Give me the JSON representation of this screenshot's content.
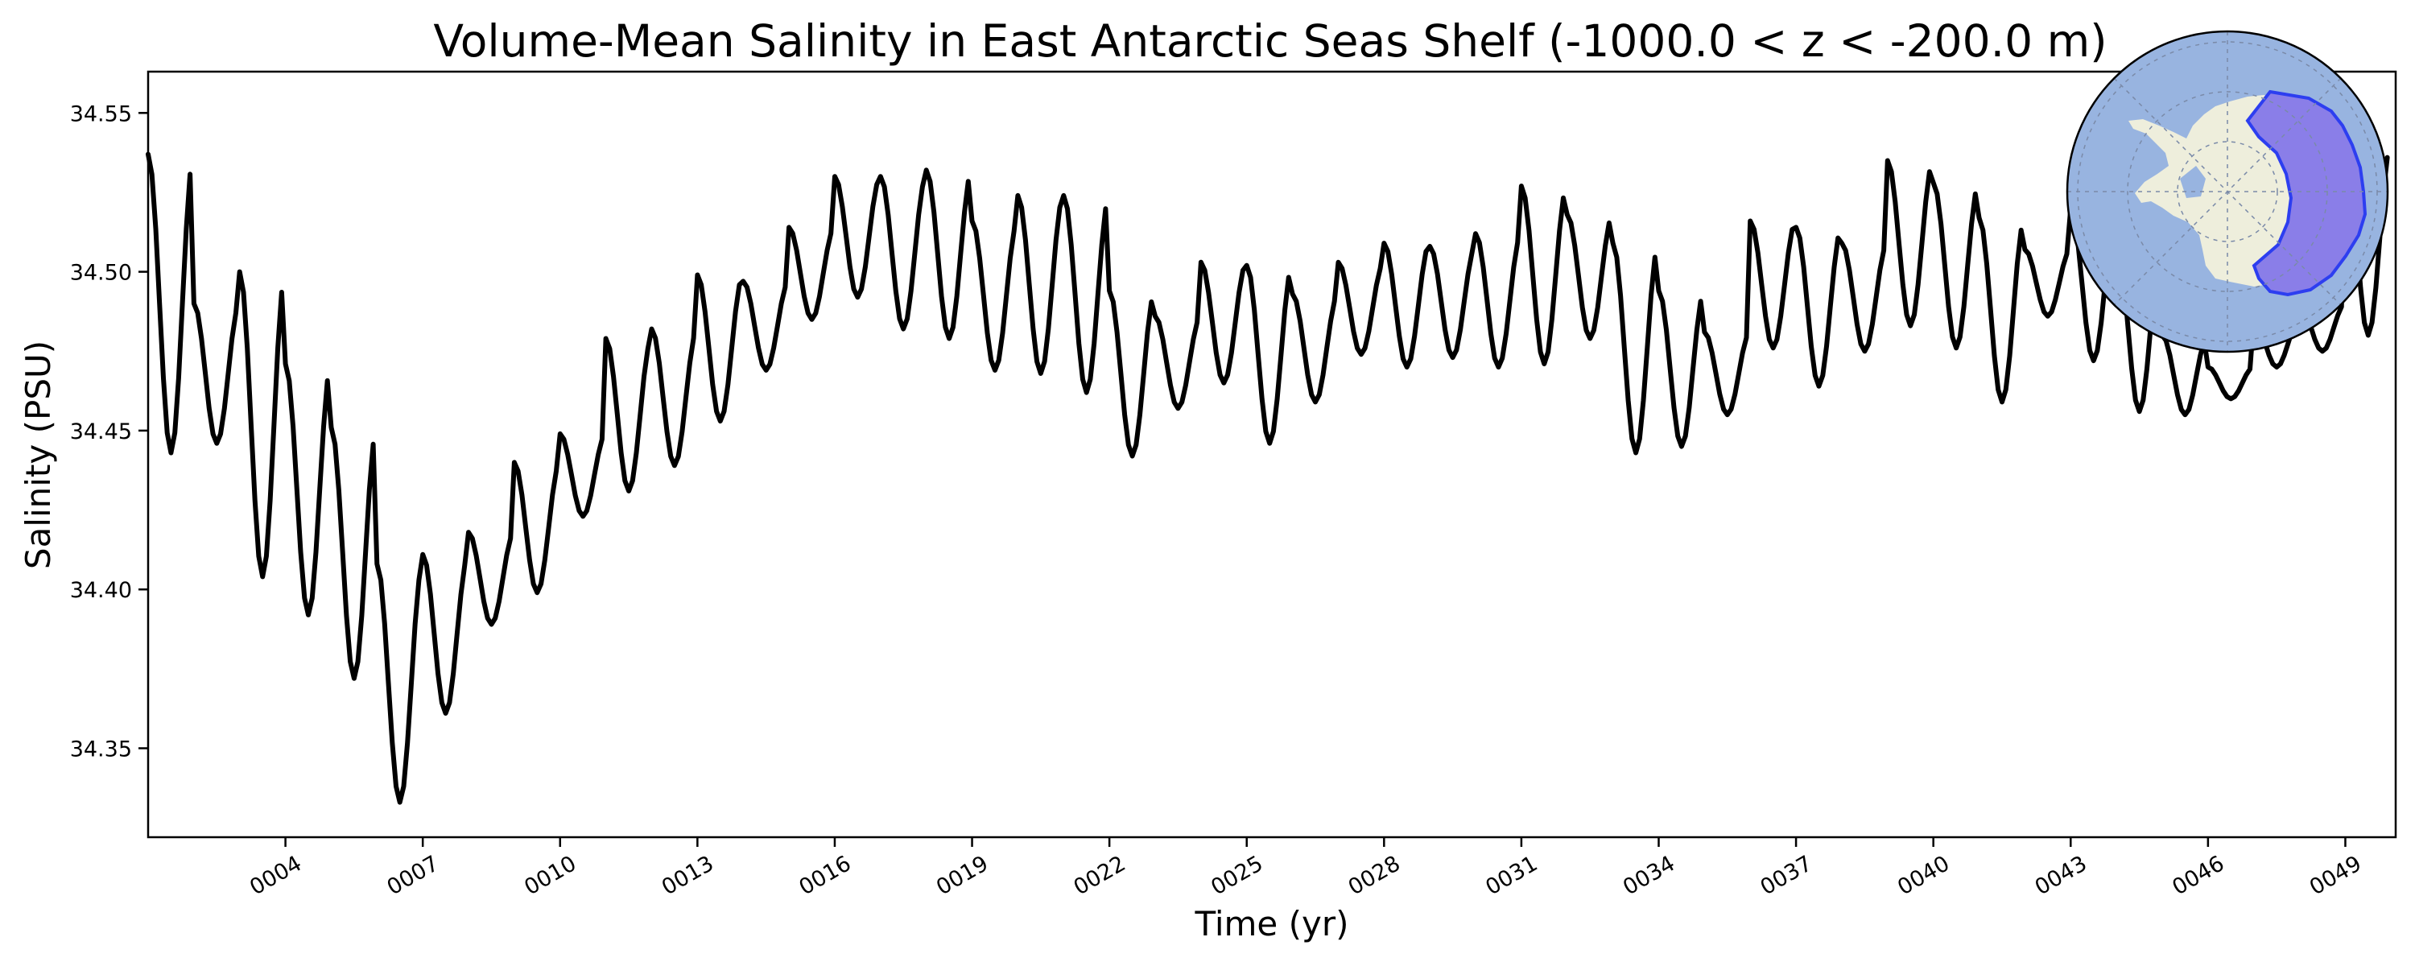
{
  "chart_data": {
    "type": "line",
    "title": "Volume-Mean Salinity in East Antarctic Seas Shelf (-1000.0 < z < -200.0 m)",
    "xlabel": "Time (yr)",
    "ylabel": "Salinity (PSU)",
    "xlim": [
      1.0,
      50.1
    ],
    "ylim": [
      34.322,
      34.563
    ],
    "grid": false,
    "x_tick_values": [
      4,
      7,
      10,
      13,
      16,
      19,
      22,
      25,
      28,
      31,
      34,
      37,
      40,
      43,
      46,
      49
    ],
    "x_tick_labels": [
      "0004",
      "0007",
      "0010",
      "0013",
      "0016",
      "0019",
      "0022",
      "0025",
      "0028",
      "0031",
      "0034",
      "0037",
      "0040",
      "0043",
      "0046",
      "0049"
    ],
    "y_tick_values": [
      34.35,
      34.4,
      34.45,
      34.5,
      34.55
    ],
    "y_tick_labels": [
      "34.35",
      "34.40",
      "34.45",
      "34.50",
      "34.55"
    ],
    "series": [
      {
        "name": "Volume-mean salinity",
        "color": "#000000",
        "monthly_start_year": 1.0,
        "annual_max": [
          34.537,
          34.49,
          34.5,
          34.471,
          34.451,
          34.408,
          34.411,
          34.418,
          34.44,
          34.449,
          34.479,
          34.482,
          34.499,
          34.497,
          34.514,
          34.53,
          34.53,
          34.532,
          34.516,
          34.524,
          34.524,
          34.494,
          34.486,
          34.503,
          34.502,
          34.493,
          34.503,
          34.509,
          34.508,
          34.512,
          34.527,
          34.518,
          34.509,
          34.494,
          34.481,
          34.516,
          34.514,
          34.509,
          34.535,
          34.528,
          34.517,
          34.507,
          34.52,
          34.51,
          34.48,
          34.47,
          34.485,
          34.49,
          34.54
        ],
        "annual_min": [
          34.443,
          34.446,
          34.404,
          34.392,
          34.372,
          34.333,
          34.361,
          34.389,
          34.399,
          34.423,
          34.431,
          34.439,
          34.453,
          34.469,
          34.485,
          34.492,
          34.482,
          34.479,
          34.469,
          34.468,
          34.462,
          34.442,
          34.457,
          34.465,
          34.446,
          34.459,
          34.474,
          34.47,
          34.473,
          34.47,
          34.471,
          34.479,
          34.443,
          34.445,
          34.455,
          34.476,
          34.464,
          34.475,
          34.483,
          34.476,
          34.459,
          34.486,
          34.472,
          34.456,
          34.455,
          34.46,
          34.47,
          34.475,
          34.48
        ]
      }
    ],
    "inset_map": {
      "description_label": "Antarctic region map",
      "ocean_color": "#98b4e0",
      "land_color": "#eeeedc",
      "region_fill_color": "#8a7ee8",
      "region_edge_color": "#2d3ef0"
    }
  }
}
